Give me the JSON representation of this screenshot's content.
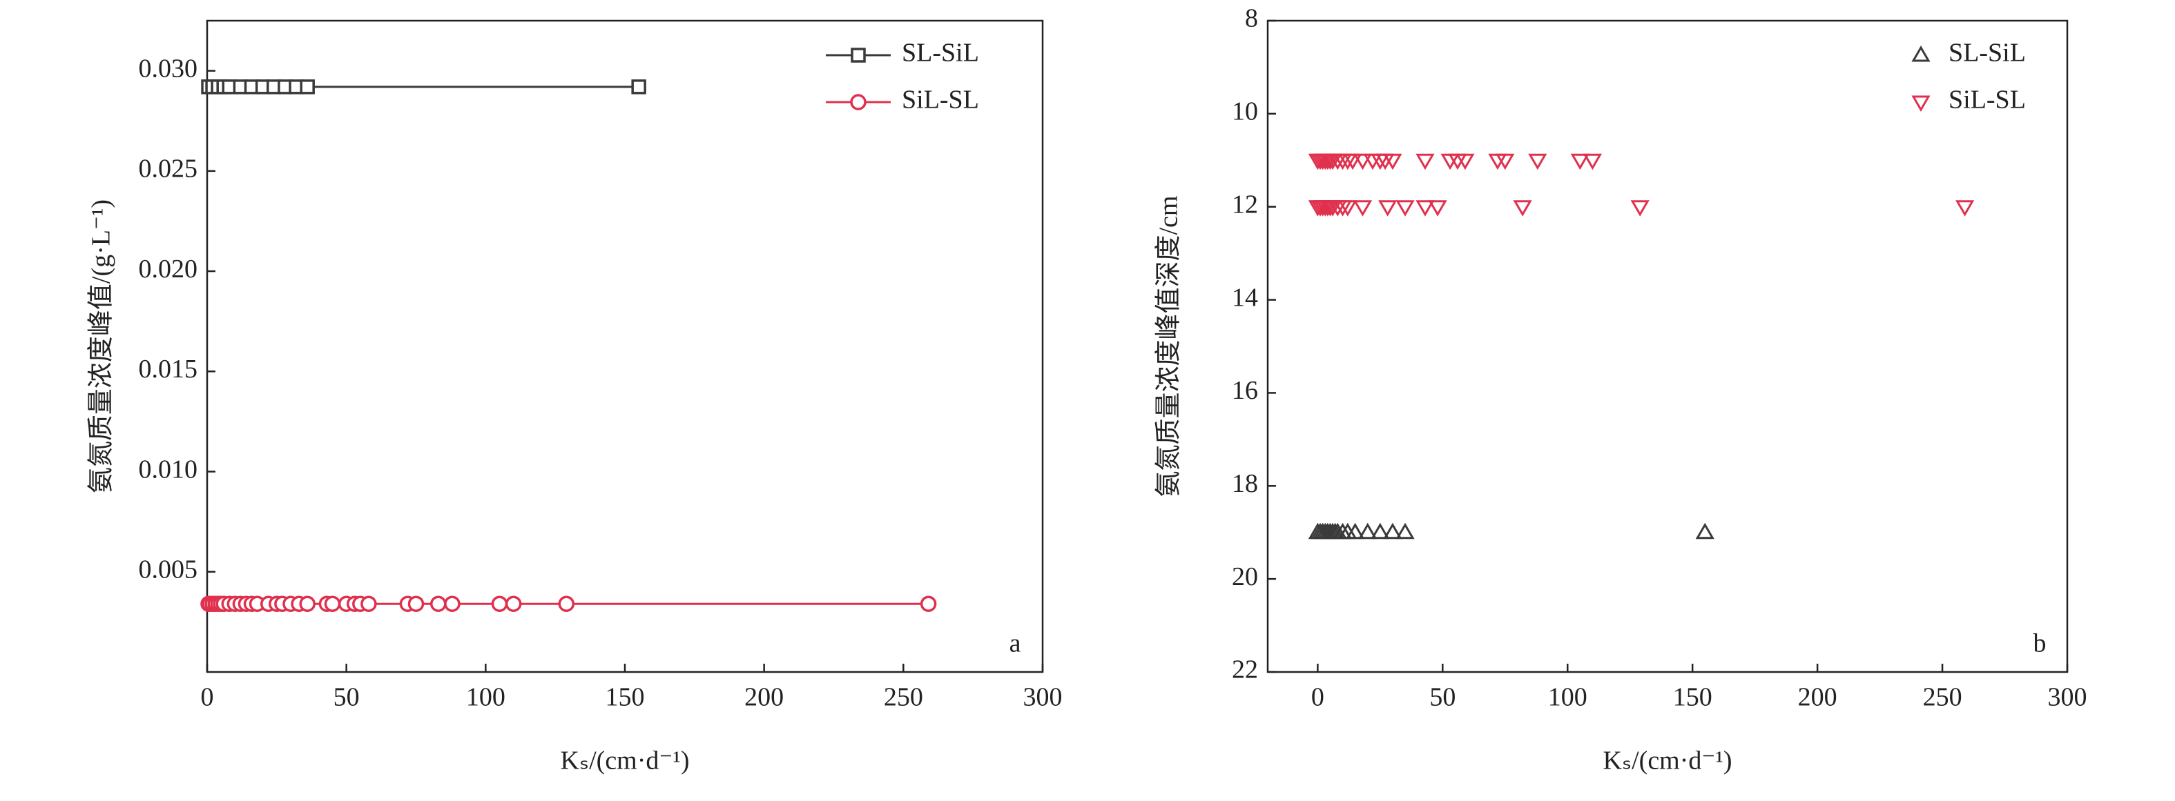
{
  "chart_data": [
    {
      "type": "line",
      "label": "a",
      "xlabel": "Kₛ/(cm·d⁻¹)",
      "ylabel": "氨氮质量浓度峰值/(g·L⁻¹)",
      "xlim": [
        0,
        300
      ],
      "xticks": [
        0,
        50,
        100,
        150,
        200,
        250,
        300
      ],
      "ylim": [
        0,
        0.0325
      ],
      "yticks": [
        0.005,
        {
          "value": 0.01,
          "label": "0.010"
        },
        0.015,
        {
          "value": 0.02,
          "label": "0.020"
        },
        0.025,
        {
          "value": 0.03,
          "label": "0.030"
        }
      ],
      "legend": "upper right",
      "series": [
        {
          "name": "SL-SiL",
          "color": "#3a3a3a",
          "marker": "square",
          "x": [
            0.5,
            2,
            4,
            6,
            8,
            12,
            16,
            20,
            24,
            28,
            32,
            36,
            155
          ],
          "values": [
            0.0292,
            0.0292,
            0.0292,
            0.0292,
            0.0292,
            0.0292,
            0.0292,
            0.0292,
            0.0292,
            0.0292,
            0.0292,
            0.0292,
            0.0292
          ]
        },
        {
          "name": "SiL-SL",
          "color": "#e0304e",
          "marker": "circle",
          "x": [
            0.5,
            1,
            2,
            3,
            4,
            5,
            6,
            8,
            10,
            12,
            14,
            16,
            18,
            22,
            25,
            27,
            30,
            33,
            36,
            43,
            45,
            50,
            53,
            55,
            58,
            72,
            75,
            83,
            88,
            105,
            110,
            129,
            259
          ],
          "values": [
            0.0034,
            0.0034,
            0.0034,
            0.0034,
            0.0034,
            0.0034,
            0.0034,
            0.0034,
            0.0034,
            0.0034,
            0.0034,
            0.0034,
            0.0034,
            0.0034,
            0.0034,
            0.0034,
            0.0034,
            0.0034,
            0.0034,
            0.0034,
            0.0034,
            0.0034,
            0.0034,
            0.0034,
            0.0034,
            0.0034,
            0.0034,
            0.0034,
            0.0034,
            0.0034,
            0.0034,
            0.0034,
            0.0034
          ]
        }
      ]
    },
    {
      "type": "scatter",
      "label": "b",
      "xlabel": "Kₛ/(cm·d⁻¹)",
      "ylabel": "氨氮质量浓度峰值深度/cm",
      "xlim": [
        -20,
        300
      ],
      "xticks": [
        0,
        50,
        100,
        150,
        200,
        250,
        300
      ],
      "ylim": [
        8,
        22
      ],
      "yticks": [
        8,
        10,
        12,
        14,
        16,
        18,
        20,
        22
      ],
      "y_inverted": true,
      "legend": "upper right",
      "series": [
        {
          "name": "SL-SiL",
          "color": "#3a3a3a",
          "marker": "triangle-up",
          "x": [
            0,
            1,
            2,
            3,
            4,
            5,
            6,
            7,
            8,
            10,
            12,
            15,
            20,
            25,
            30,
            35,
            155
          ],
          "values": [
            19,
            19,
            19,
            19,
            19,
            19,
            19,
            19,
            19,
            19,
            19,
            19,
            19,
            19,
            19,
            19,
            19
          ]
        },
        {
          "name": "SiL-SL",
          "color": "#e0304e",
          "marker": "triangle-down",
          "x": [
            0,
            1,
            2,
            3,
            4,
            5,
            6,
            8,
            10,
            12,
            14,
            18,
            22,
            25,
            27,
            30,
            43,
            53,
            56,
            59,
            72,
            75,
            88,
            105,
            110,
            0,
            1,
            2,
            3,
            4,
            5,
            6,
            8,
            10,
            12,
            18,
            28,
            35,
            43,
            48,
            82,
            129,
            259
          ],
          "values": [
            11,
            11,
            11,
            11,
            11,
            11,
            11,
            11,
            11,
            11,
            11,
            11,
            11,
            11,
            11,
            11,
            11,
            11,
            11,
            11,
            11,
            11,
            11,
            11,
            11,
            12,
            12,
            12,
            12,
            12,
            12,
            12,
            12,
            12,
            12,
            12,
            12,
            12,
            12,
            12,
            12,
            12,
            12
          ]
        }
      ]
    }
  ]
}
